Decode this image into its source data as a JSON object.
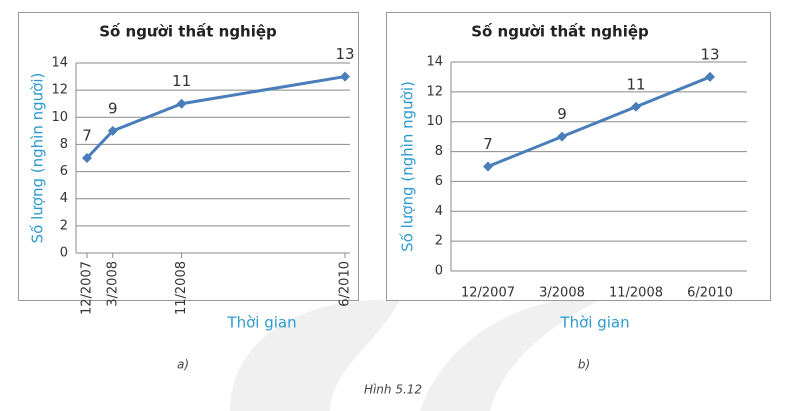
{
  "chart_data": [
    {
      "type": "line",
      "title": "Số người thất nghiệp",
      "x": [
        "12/2007",
        "3/2008",
        "11/2008",
        "6/2010"
      ],
      "xscale": "time",
      "x_label_rotation": -90,
      "values": [
        7,
        9,
        11,
        13
      ],
      "color": "#4a7ebb",
      "ylim": [
        0,
        14
      ],
      "yticks": [
        0,
        2,
        4,
        6,
        8,
        10,
        12,
        14
      ],
      "grid": true,
      "xlabel": "Thời gian",
      "ylabel": "Số lượng (nghìn người)",
      "panel_label": "a)"
    },
    {
      "type": "line",
      "title": "Số người thất nghiệp",
      "categories": [
        "12/2007",
        "3/2008",
        "11/2008",
        "6/2010"
      ],
      "values": [
        7,
        9,
        11,
        13
      ],
      "color": "#4a7ebb",
      "ylim": [
        0,
        14
      ],
      "yticks": [
        0,
        2,
        4,
        6,
        8,
        10,
        12,
        14
      ],
      "grid": true,
      "xlabel": "Thời gian",
      "ylabel": "Số lượng (nghìn người)",
      "panel_label": "b)"
    }
  ],
  "figure": {
    "caption": "Hình 5.12"
  }
}
